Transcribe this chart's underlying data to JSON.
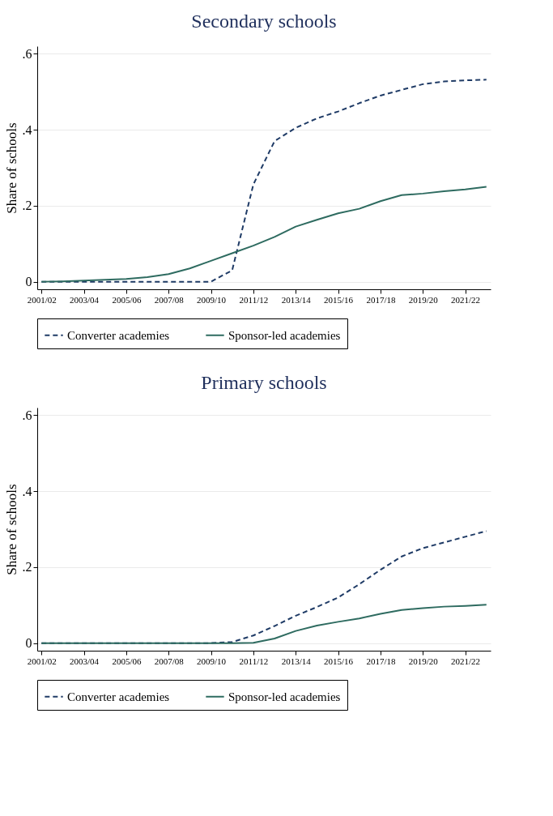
{
  "chart_data": [
    {
      "type": "line",
      "title": "Secondary schools",
      "ylabel": "Share of schools",
      "categories": [
        "2001/02",
        null,
        "2003/04",
        null,
        "2005/06",
        null,
        "2007/08",
        null,
        "2009/10",
        null,
        "2011/12",
        null,
        "2013/14",
        null,
        "2015/16",
        null,
        "2017/18",
        null,
        "2019/20",
        null,
        "2021/22",
        null
      ],
      "series": [
        {
          "name": "Converter academies",
          "color": "#1f3b66",
          "line_style": "dashed",
          "values": [
            0,
            0,
            0,
            0,
            0,
            0,
            0,
            0,
            0,
            0.03,
            0.256,
            0.37,
            0.405,
            0.43,
            0.448,
            0.47,
            0.49,
            0.505,
            0.52,
            0.527,
            0.53,
            0.532
          ]
        },
        {
          "name": "Sponsor-led academies",
          "color": "#2e6b60",
          "line_style": "solid",
          "values": [
            0,
            0.001,
            0.003,
            0.005,
            0.007,
            0.012,
            0.02,
            0.035,
            0.055,
            0.075,
            0.095,
            0.118,
            0.145,
            0.163,
            0.18,
            0.192,
            0.212,
            0.228,
            0.232,
            0.238,
            0.243,
            0.25
          ]
        }
      ],
      "ylim": [
        -0.02,
        0.62
      ],
      "yticks": [
        {
          "value": 0,
          "label": "0"
        },
        {
          "value": 0.2,
          "label": ".2"
        },
        {
          "value": 0.4,
          "label": ".4"
        },
        {
          "value": 0.6,
          "label": ".6"
        }
      ],
      "grid": "y",
      "legend": "bottom"
    },
    {
      "type": "line",
      "title": "Primary schools",
      "ylabel": "Share of schools",
      "categories": [
        "2001/02",
        null,
        "2003/04",
        null,
        "2005/06",
        null,
        "2007/08",
        null,
        "2009/10",
        null,
        "2011/12",
        null,
        "2013/14",
        null,
        "2015/16",
        null,
        "2017/18",
        null,
        "2019/20",
        null,
        "2021/22",
        null
      ],
      "series": [
        {
          "name": "Converter academies",
          "color": "#1f3b66",
          "line_style": "dashed",
          "values": [
            0,
            0,
            0,
            0,
            0,
            0,
            0,
            0,
            0,
            0.003,
            0.02,
            0.045,
            0.072,
            0.095,
            0.12,
            0.155,
            0.193,
            0.228,
            0.25,
            0.265,
            0.28,
            0.295
          ]
        },
        {
          "name": "Sponsor-led academies",
          "color": "#2e6b60",
          "line_style": "solid",
          "values": [
            0,
            0,
            0,
            0,
            0,
            0,
            0,
            0,
            0,
            0,
            0.001,
            0.012,
            0.032,
            0.046,
            0.056,
            0.065,
            0.077,
            0.087,
            0.092,
            0.096,
            0.098,
            0.101
          ]
        }
      ],
      "ylim": [
        -0.02,
        0.62
      ],
      "yticks": [
        {
          "value": 0,
          "label": "0"
        },
        {
          "value": 0.2,
          "label": ".2"
        },
        {
          "value": 0.4,
          "label": ".4"
        },
        {
          "value": 0.6,
          "label": ".6"
        }
      ],
      "grid": "y",
      "legend": "bottom"
    }
  ]
}
